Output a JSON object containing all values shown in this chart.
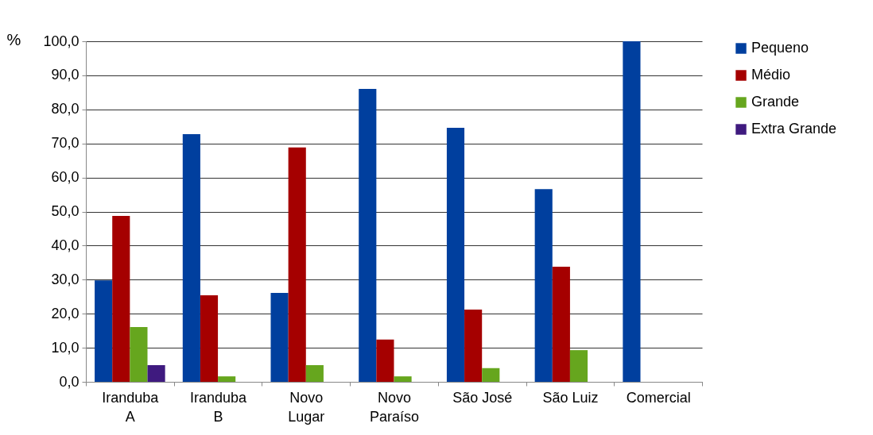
{
  "chart_data": {
    "type": "bar",
    "ylabel": "%",
    "categories": [
      "Iranduba A",
      "Iranduba B",
      "Novo Lugar",
      "Novo Paraíso",
      "São José",
      "São Luiz",
      "Comercial"
    ],
    "series": [
      {
        "name": "Pequeno",
        "color": "#003f9e",
        "values": [
          29.8,
          72.7,
          26.1,
          86.0,
          74.6,
          56.6,
          100.0
        ]
      },
      {
        "name": "Médio",
        "color": "#a50000",
        "values": [
          48.7,
          25.4,
          68.8,
          12.4,
          21.2,
          33.8,
          null
        ]
      },
      {
        "name": "Grande",
        "color": "#66a61e",
        "values": [
          16.1,
          1.6,
          4.9,
          1.6,
          4.0,
          9.3,
          null
        ]
      },
      {
        "name": "Extra Grande",
        "color": "#3f1a7f",
        "values": [
          4.9,
          null,
          null,
          null,
          null,
          null,
          null
        ]
      }
    ],
    "ylim": [
      0,
      100
    ],
    "yticks": [
      {
        "value": 0,
        "label": "0,0"
      },
      {
        "value": 10,
        "label": "10,0"
      },
      {
        "value": 20,
        "label": "20,0"
      },
      {
        "value": 30,
        "label": "30,0"
      },
      {
        "value": 40,
        "label": "40,0"
      },
      {
        "value": 50,
        "label": "50,0"
      },
      {
        "value": 60,
        "label": "60,0"
      },
      {
        "value": 70,
        "label": "70,0"
      },
      {
        "value": 80,
        "label": "80,0"
      },
      {
        "value": 90,
        "label": "90,0"
      },
      {
        "value": 100,
        "label": "100,0"
      }
    ],
    "grid": "y",
    "legend": "right"
  }
}
